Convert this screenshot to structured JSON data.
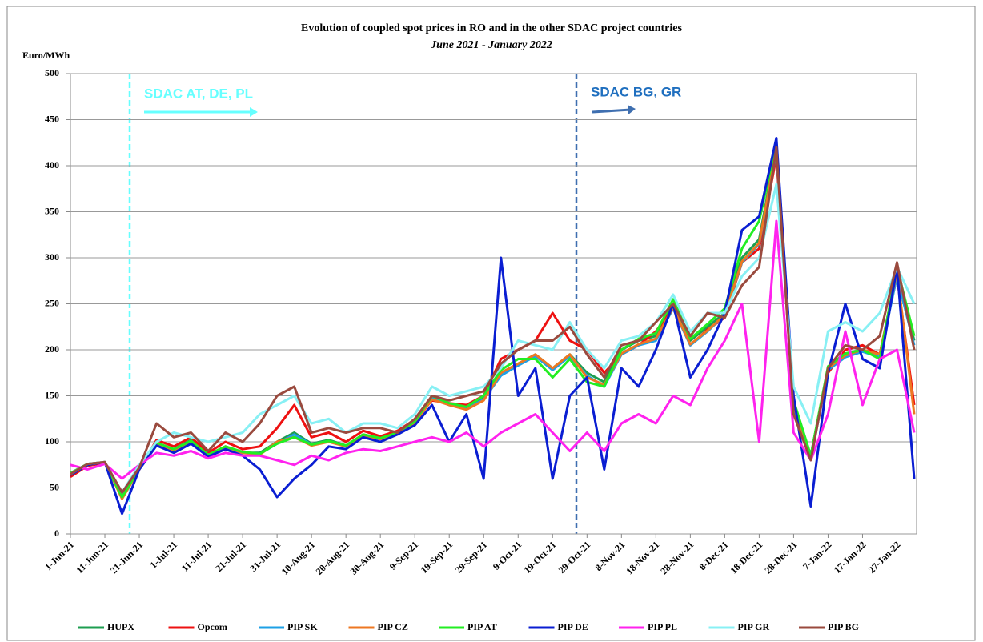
{
  "chart_data": {
    "type": "line",
    "title": "Evolution  of coupled spot prices in RO and in the other SDAC project countries",
    "subtitle": "June 2021 - January 2022",
    "y_label": "Euro/MWh",
    "annotations": [
      "SDAC AT, DE, PL",
      "SDAC BG, GR"
    ],
    "categories": [
      "1-Jun-21",
      null,
      "11-Jun-21",
      null,
      "21-Jun-21",
      null,
      "1-Jul-21",
      null,
      "11-Jul-21",
      null,
      "21-Jul-21",
      null,
      "31-Jul-21",
      null,
      "10-Aug-21",
      null,
      "20-Aug-21",
      null,
      "30-Aug-21",
      null,
      "9-Sep-21",
      null,
      "19-Sep-21",
      null,
      "29-Sep-21",
      null,
      "9-Oct-21",
      null,
      "19-Oct-21",
      null,
      "29-Oct-21",
      null,
      "8-Nov-21",
      null,
      "18-Nov-21",
      null,
      "28-Nov-21",
      null,
      "8-Dec-21",
      null,
      "18-Dec-21",
      null,
      "28-Dec-21",
      null,
      "7-Jan-22",
      null,
      "17-Jan-22",
      null,
      "27-Jan-22",
      null
    ],
    "series": [
      {
        "name": "HUPX",
        "color": "#1e9e50",
        "values": [
          66,
          76,
          78,
          42,
          72,
          98,
          92,
          102,
          86,
          95,
          88,
          88,
          100,
          110,
          98,
          102,
          96,
          108,
          104,
          110,
          122,
          150,
          140,
          138,
          148,
          175,
          185,
          195,
          180,
          195,
          175,
          165,
          200,
          210,
          215,
          250,
          210,
          225,
          240,
          300,
          320,
          420,
          140,
          85,
          180,
          195,
          200,
          195,
          285,
          210
        ]
      },
      {
        "name": "Opcom",
        "color": "#ee1111",
        "values": [
          62,
          74,
          77,
          45,
          70,
          102,
          95,
          105,
          88,
          100,
          92,
          95,
          115,
          140,
          105,
          110,
          100,
          112,
          106,
          112,
          124,
          145,
          142,
          140,
          150,
          190,
          200,
          210,
          240,
          210,
          200,
          175,
          195,
          205,
          220,
          245,
          205,
          222,
          235,
          295,
          310,
          410,
          135,
          85,
          175,
          200,
          205,
          195,
          280,
          140
        ]
      },
      {
        "name": "PIP SK",
        "color": "#1ea0e6",
        "values": [
          65,
          76,
          78,
          40,
          71,
          97,
          91,
          101,
          85,
          94,
          88,
          87,
          98,
          108,
          97,
          101,
          95,
          107,
          103,
          109,
          121,
          148,
          140,
          136,
          146,
          172,
          183,
          193,
          178,
          193,
          172,
          160,
          195,
          205,
          210,
          245,
          205,
          220,
          238,
          295,
          315,
          415,
          138,
          82,
          178,
          192,
          198,
          192,
          280,
          205
        ]
      },
      {
        "name": "PIP CZ",
        "color": "#ee7722",
        "values": [
          65,
          75,
          78,
          38,
          70,
          98,
          90,
          100,
          85,
          95,
          88,
          86,
          100,
          105,
          96,
          100,
          95,
          107,
          103,
          108,
          120,
          146,
          140,
          135,
          145,
          175,
          185,
          195,
          180,
          195,
          170,
          162,
          196,
          206,
          212,
          246,
          206,
          221,
          238,
          296,
          316,
          418,
          140,
          84,
          180,
          194,
          200,
          195,
          285,
          130
        ]
      },
      {
        "name": "PIP AT",
        "color": "#22ee22",
        "values": [
          66,
          76,
          78,
          40,
          71,
          99,
          92,
          101,
          86,
          95,
          89,
          87,
          98,
          105,
          97,
          101,
          96,
          108,
          104,
          110,
          122,
          150,
          142,
          138,
          150,
          178,
          190,
          190,
          170,
          190,
          165,
          160,
          200,
          212,
          218,
          255,
          212,
          228,
          245,
          310,
          340,
          425,
          145,
          85,
          182,
          196,
          200,
          190,
          290,
          215
        ]
      },
      {
        "name": "PIP DE",
        "color": "#0a1ed2",
        "values": [
          64,
          75,
          78,
          22,
          70,
          96,
          88,
          98,
          84,
          92,
          85,
          70,
          40,
          60,
          75,
          95,
          92,
          105,
          100,
          108,
          118,
          140,
          100,
          130,
          60,
          300,
          150,
          180,
          60,
          150,
          170,
          70,
          180,
          160,
          200,
          250,
          170,
          200,
          240,
          330,
          345,
          430,
          150,
          30,
          175,
          250,
          190,
          180,
          290,
          60
        ]
      },
      {
        "name": "PIP PL",
        "color": "#ff22ee",
        "values": [
          75,
          70,
          76,
          60,
          75,
          88,
          85,
          90,
          82,
          88,
          85,
          85,
          80,
          75,
          85,
          80,
          88,
          92,
          90,
          95,
          100,
          105,
          100,
          110,
          95,
          110,
          120,
          130,
          110,
          90,
          110,
          90,
          120,
          130,
          120,
          150,
          140,
          180,
          210,
          250,
          100,
          340,
          110,
          80,
          130,
          220,
          140,
          190,
          200,
          110
        ]
      },
      {
        "name": "PIP GR",
        "color": "#88f0f4",
        "values": [
          65,
          76,
          78,
          45,
          75,
          100,
          110,
          105,
          100,
          105,
          110,
          130,
          140,
          150,
          120,
          125,
          110,
          120,
          120,
          115,
          130,
          160,
          150,
          155,
          160,
          180,
          210,
          205,
          200,
          230,
          200,
          180,
          210,
          215,
          230,
          260,
          220,
          240,
          240,
          280,
          300,
          380,
          160,
          120,
          220,
          230,
          220,
          240,
          290,
          250
        ]
      },
      {
        "name": "PIP BG",
        "color": "#9a4a3e",
        "values": [
          65,
          76,
          78,
          45,
          72,
          120,
          105,
          110,
          90,
          110,
          100,
          120,
          150,
          160,
          110,
          115,
          110,
          115,
          115,
          110,
          125,
          150,
          145,
          150,
          155,
          185,
          200,
          210,
          210,
          225,
          195,
          170,
          205,
          210,
          230,
          250,
          215,
          240,
          235,
          270,
          290,
          420,
          130,
          80,
          180,
          205,
          200,
          215,
          295,
          200
        ]
      }
    ],
    "ylim": [
      0,
      500
    ],
    "yticks": [
      0,
      50,
      100,
      150,
      200,
      250,
      300,
      350,
      400,
      450,
      500
    ],
    "grid": true
  }
}
